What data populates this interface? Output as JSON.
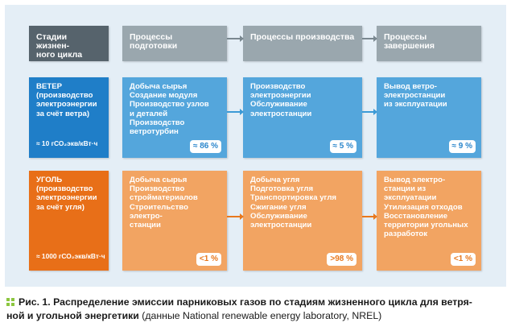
{
  "headers": [
    "Стадии жизнен-\nного цикла",
    "Процессы подготовки",
    "Процессы производства",
    "Процессы завершения"
  ],
  "wind": {
    "label": "ВЕТЕР\n(производство\nэлектроэнергии\nза счёт ветра)",
    "emission": "≈ 10 гСО₂экв/кВт·ч",
    "preparation": {
      "text": "Добыча сырья\nСоздание модуля\nПроизводство узлов\nи деталей\nПроизводство\nветротурбин",
      "pct": "≈ 86 %"
    },
    "production": {
      "text": "Производство\nэлектроэнергии\nОбслуживание\nэлектростанции",
      "pct": "≈ 5 %"
    },
    "completion": {
      "text": "Вывод ветро-\nэлектростанции\nиз эксплуатации",
      "pct": "≈ 9 %"
    }
  },
  "coal": {
    "label": "УГОЛЬ\n(производство\nэлектроэнергии\nза счёт угля)",
    "emission": "≈ 1000 гСО₂экв/кВт·ч",
    "preparation": {
      "text": "Добыча сырья\nПроизводство\nстройматериалов\nСтроительство\nэлектро-\nстанции",
      "pct": "<1 %"
    },
    "production": {
      "text": "Добыча угля\nПодготовка угля\nТранспортировка угля\nСжигание угля\nОбслуживание\nэлектростанции",
      "pct": ">98 %"
    },
    "completion": {
      "text": "Вывод электро-\nстанции из\nэксплуатации\nУтилизация отходов\nВосстановление\nтерритории угольных\nразработок",
      "pct": "<1 %"
    }
  },
  "caption": {
    "bold": "Рис. 1. Распределение эмиссии парниковых газов по стадиям жизненного цикла для ветря-\nной и угольной энергетики",
    "normal": " (данные National renewable energy laboratory, NREL)"
  },
  "colors": {
    "header_dark": "#56636c",
    "header_gray": "#9aa7ae",
    "wind_dark": "#1f7ec8",
    "wind_light": "#54a6dc",
    "coal_dark": "#e86f18",
    "coal_light": "#f2a462",
    "marker": "#8cc63f"
  }
}
